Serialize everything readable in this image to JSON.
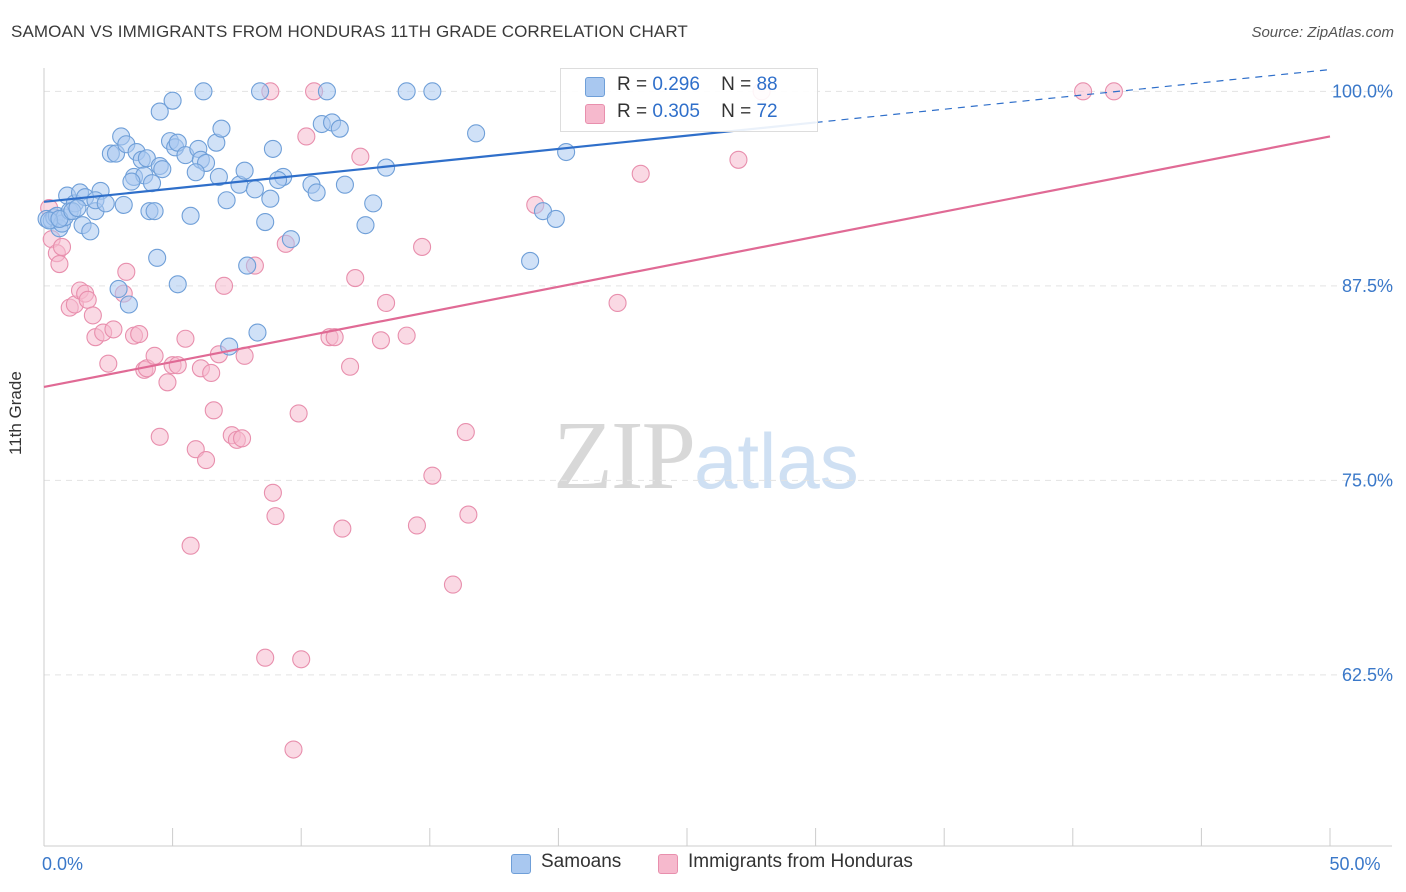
{
  "header": {
    "title": "SAMOAN VS IMMIGRANTS FROM HONDURAS 11TH GRADE CORRELATION CHART",
    "source": "Source: ZipAtlas.com"
  },
  "legend": {
    "r_label": "R =",
    "n_label": "N =",
    "rows": [
      {
        "r": "0.296",
        "n": "88",
        "color": "#a9c8f0"
      },
      {
        "r": "0.305",
        "n": "72",
        "color": "#f6b9cd"
      }
    ]
  },
  "bottom_legend": [
    "Samoans",
    "Immigrants from Honduras"
  ],
  "watermark": {
    "zip": "ZIP",
    "atlas": "atlas"
  },
  "colors": {
    "blue_fill": "#a9c8f0",
    "blue_stroke": "#6f9fd8",
    "blue_line": "#2f6fca",
    "pink_fill": "#f6b9cd",
    "pink_stroke": "#e88fad",
    "pink_line": "#e06a95",
    "tick_label": "#3a78c9",
    "grid": "#e3e3e3"
  },
  "chart_data": {
    "type": "scatter",
    "title": "SAMOAN VS IMMIGRANTS FROM HONDURAS 11TH GRADE CORRELATION CHART",
    "xlabel": "",
    "ylabel": "11th Grade",
    "xlim": [
      0,
      50
    ],
    "ylim": [
      51.5,
      101.5
    ],
    "x_tick_labels": [
      {
        "value": 0,
        "label": "0.0%"
      },
      {
        "value": 50,
        "label": "50.0%"
      }
    ],
    "y_tick_labels": [
      {
        "value": 100,
        "label": "100.0%"
      },
      {
        "value": 87.5,
        "label": "87.5%"
      },
      {
        "value": 75,
        "label": "75.0%"
      },
      {
        "value": 62.5,
        "label": "62.5%"
      }
    ],
    "grid": true,
    "legend_position": "top-center",
    "series": [
      {
        "name": "Samoans",
        "r": 0.296,
        "n": 88,
        "trend": {
          "x0": 0,
          "y0": 92.9,
          "x1": 30,
          "y1": 98.0,
          "dashed_to_x": 50,
          "dashed_to_y": 101.4
        },
        "points": [
          [
            0.1,
            91.8
          ],
          [
            0.3,
            91.7
          ],
          [
            0.4,
            91.9
          ],
          [
            0.5,
            92.0
          ],
          [
            0.6,
            91.2
          ],
          [
            0.7,
            91.5
          ],
          [
            0.8,
            91.9
          ],
          [
            0.9,
            93.3
          ],
          [
            1.0,
            92.3
          ],
          [
            1.2,
            92.8
          ],
          [
            1.4,
            93.5
          ],
          [
            1.5,
            91.4
          ],
          [
            1.6,
            93.2
          ],
          [
            1.8,
            91.0
          ],
          [
            2.0,
            92.3
          ],
          [
            2.2,
            93.6
          ],
          [
            2.6,
            96.0
          ],
          [
            2.8,
            96.0
          ],
          [
            2.9,
            87.3
          ],
          [
            3.0,
            97.1
          ],
          [
            3.1,
            92.7
          ],
          [
            3.2,
            96.6
          ],
          [
            3.3,
            86.3
          ],
          [
            3.5,
            94.5
          ],
          [
            3.6,
            96.1
          ],
          [
            3.8,
            95.6
          ],
          [
            3.9,
            94.6
          ],
          [
            4.0,
            95.7
          ],
          [
            4.1,
            92.3
          ],
          [
            4.2,
            94.1
          ],
          [
            4.3,
            92.3
          ],
          [
            4.4,
            89.3
          ],
          [
            4.5,
            95.2
          ],
          [
            4.6,
            95.0
          ],
          [
            4.5,
            98.7
          ],
          [
            4.9,
            96.8
          ],
          [
            5.0,
            99.4
          ],
          [
            5.1,
            96.4
          ],
          [
            5.2,
            96.7
          ],
          [
            5.2,
            87.6
          ],
          [
            5.5,
            95.9
          ],
          [
            5.7,
            92.0
          ],
          [
            6.0,
            96.3
          ],
          [
            6.1,
            95.6
          ],
          [
            6.2,
            100.0
          ],
          [
            6.3,
            95.4
          ],
          [
            6.7,
            96.7
          ],
          [
            6.9,
            97.6
          ],
          [
            7.1,
            93.0
          ],
          [
            7.2,
            83.6
          ],
          [
            7.6,
            94.0
          ],
          [
            7.8,
            94.9
          ],
          [
            7.9,
            88.8
          ],
          [
            8.2,
            93.7
          ],
          [
            8.3,
            84.5
          ],
          [
            8.4,
            100.0
          ],
          [
            8.6,
            91.6
          ],
          [
            8.8,
            93.1
          ],
          [
            8.9,
            96.3
          ],
          [
            9.3,
            94.5
          ],
          [
            9.6,
            90.5
          ],
          [
            10.4,
            94.0
          ],
          [
            10.6,
            93.5
          ],
          [
            10.8,
            97.9
          ],
          [
            11.0,
            100.0
          ],
          [
            11.2,
            98.0
          ],
          [
            11.5,
            97.6
          ],
          [
            11.7,
            94.0
          ],
          [
            12.5,
            91.4
          ],
          [
            12.8,
            92.8
          ],
          [
            13.3,
            95.1
          ],
          [
            14.1,
            100.0
          ],
          [
            15.1,
            100.0
          ],
          [
            16.8,
            97.3
          ],
          [
            18.9,
            89.1
          ],
          [
            19.4,
            92.3
          ],
          [
            19.9,
            91.8
          ],
          [
            20.3,
            96.1
          ],
          [
            0.2,
            91.7
          ],
          [
            0.6,
            91.8
          ],
          [
            1.1,
            92.3
          ],
          [
            1.3,
            92.5
          ],
          [
            2.0,
            93.0
          ],
          [
            2.4,
            92.8
          ],
          [
            6.8,
            94.5
          ],
          [
            9.1,
            94.3
          ],
          [
            3.4,
            94.2
          ],
          [
            5.9,
            94.8
          ]
        ]
      },
      {
        "name": "Immigrants from Honduras",
        "r": 0.305,
        "n": 72,
        "trend": {
          "x0": 0,
          "y0": 81.0,
          "x1": 50,
          "y1": 97.1
        },
        "points": [
          [
            0.2,
            92.5
          ],
          [
            0.3,
            90.5
          ],
          [
            0.5,
            89.6
          ],
          [
            0.6,
            88.9
          ],
          [
            0.7,
            90.0
          ],
          [
            1.0,
            86.1
          ],
          [
            1.2,
            86.3
          ],
          [
            1.4,
            87.2
          ],
          [
            1.6,
            87.0
          ],
          [
            1.7,
            86.6
          ],
          [
            1.9,
            85.6
          ],
          [
            2.0,
            84.2
          ],
          [
            2.3,
            84.5
          ],
          [
            2.5,
            82.5
          ],
          [
            2.7,
            84.7
          ],
          [
            3.1,
            87.0
          ],
          [
            3.2,
            88.4
          ],
          [
            3.5,
            84.3
          ],
          [
            3.7,
            84.4
          ],
          [
            3.9,
            82.1
          ],
          [
            4.0,
            82.2
          ],
          [
            4.3,
            83.0
          ],
          [
            4.5,
            77.8
          ],
          [
            4.8,
            81.3
          ],
          [
            5.0,
            82.4
          ],
          [
            5.2,
            82.4
          ],
          [
            5.5,
            84.1
          ],
          [
            5.7,
            70.8
          ],
          [
            5.9,
            77.0
          ],
          [
            6.1,
            82.2
          ],
          [
            6.3,
            76.3
          ],
          [
            6.5,
            81.9
          ],
          [
            6.6,
            79.5
          ],
          [
            6.8,
            83.1
          ],
          [
            7.0,
            87.5
          ],
          [
            7.3,
            77.9
          ],
          [
            7.5,
            77.6
          ],
          [
            7.7,
            77.7
          ],
          [
            7.8,
            83.0
          ],
          [
            8.2,
            88.8
          ],
          [
            8.6,
            63.6
          ],
          [
            8.8,
            100.0
          ],
          [
            8.9,
            74.2
          ],
          [
            9.0,
            72.7
          ],
          [
            9.4,
            90.2
          ],
          [
            9.7,
            57.7
          ],
          [
            9.9,
            79.3
          ],
          [
            10.0,
            63.5
          ],
          [
            10.2,
            97.1
          ],
          [
            10.5,
            100.0
          ],
          [
            11.1,
            84.2
          ],
          [
            11.3,
            84.2
          ],
          [
            11.6,
            71.9
          ],
          [
            11.9,
            82.3
          ],
          [
            12.1,
            88.0
          ],
          [
            12.3,
            95.8
          ],
          [
            13.1,
            84.0
          ],
          [
            13.3,
            86.4
          ],
          [
            14.1,
            84.3
          ],
          [
            14.5,
            72.1
          ],
          [
            14.7,
            90.0
          ],
          [
            15.1,
            75.3
          ],
          [
            15.9,
            68.3
          ],
          [
            16.5,
            72.8
          ],
          [
            16.4,
            78.1
          ],
          [
            19.1,
            92.7
          ],
          [
            22.3,
            86.4
          ],
          [
            23.2,
            94.7
          ],
          [
            27.0,
            95.6
          ],
          [
            27.9,
            100.0
          ],
          [
            40.4,
            100.0
          ],
          [
            41.6,
            100.0
          ]
        ]
      }
    ]
  }
}
